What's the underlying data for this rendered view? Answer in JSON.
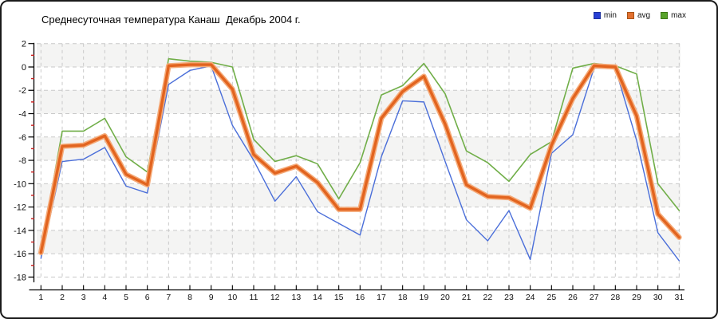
{
  "header": {
    "title": "Среднесуточная температура Канаш  Декабрь 2004 г."
  },
  "legend": {
    "position": "top-right",
    "items": [
      {
        "label": "min",
        "color": "#2840d4",
        "border": "#1c2f9e"
      },
      {
        "label": "avg",
        "color": "#e2702f",
        "border": "#a85417"
      },
      {
        "label": "max",
        "color": "#58a32b",
        "border": "#3d7716"
      }
    ]
  },
  "chart_data": {
    "type": "line",
    "title": "Среднесуточная температура Канаш  Декабрь 2004 г.",
    "xlabel": "",
    "ylabel": "",
    "x": [
      1,
      2,
      3,
      4,
      5,
      6,
      7,
      8,
      9,
      10,
      11,
      12,
      13,
      14,
      15,
      16,
      17,
      18,
      19,
      20,
      21,
      22,
      23,
      24,
      25,
      26,
      27,
      28,
      29,
      30,
      31
    ],
    "yticks": [
      2,
      0,
      -2,
      -4,
      -6,
      -8,
      -10,
      -12,
      -14,
      -16,
      -18
    ],
    "ylim": [
      -18,
      2
    ],
    "grid": true,
    "band_colors": [
      "#f4f4f3",
      "#ffffff"
    ],
    "gridline_color": "#c9c9c9",
    "axis": {
      "color": "#000000",
      "minor_tick_color": "#cc2222",
      "label_color": "#111111"
    },
    "legend_position": "top-right",
    "series": [
      {
        "name": "min",
        "color": "#4a6ed9",
        "width": 1.4,
        "values": [
          -16.4,
          -8.1,
          -7.9,
          -6.9,
          -10.2,
          -10.8,
          -1.5,
          -0.3,
          0.1,
          -5.0,
          -8.0,
          -11.5,
          -9.4,
          -12.4,
          -13.4,
          -14.4,
          -7.7,
          -2.9,
          -3.0,
          -8.1,
          -13.1,
          -14.9,
          -12.3,
          -16.5,
          -7.4,
          -5.8,
          -0.1,
          -0.1,
          -6.3,
          -14.2,
          -16.6
        ]
      },
      {
        "name": "avg",
        "color": "#e2641f",
        "halo": "#f5aa78",
        "width": 3.4,
        "values": [
          -15.9,
          -6.8,
          -6.7,
          -5.9,
          -9.2,
          -10.1,
          0.1,
          0.2,
          0.2,
          -1.9,
          -7.5,
          -9.1,
          -8.5,
          -9.9,
          -12.2,
          -12.2,
          -4.4,
          -2.1,
          -0.8,
          -4.9,
          -10.1,
          -11.1,
          -11.2,
          -12.1,
          -6.7,
          -2.7,
          0.1,
          0.0,
          -4.2,
          -12.6,
          -14.6
        ]
      },
      {
        "name": "max",
        "color": "#70ae48",
        "width": 1.6,
        "values": [
          -15.7,
          -5.5,
          -5.5,
          -4.4,
          -7.7,
          -9.0,
          0.7,
          0.5,
          0.4,
          0.0,
          -6.2,
          -8.1,
          -7.6,
          -8.3,
          -11.3,
          -8.2,
          -2.4,
          -1.6,
          0.3,
          -2.3,
          -7.2,
          -8.2,
          -9.8,
          -7.5,
          -6.4,
          -0.1,
          0.3,
          0.1,
          -0.6,
          -10.0,
          -12.3
        ]
      }
    ]
  }
}
